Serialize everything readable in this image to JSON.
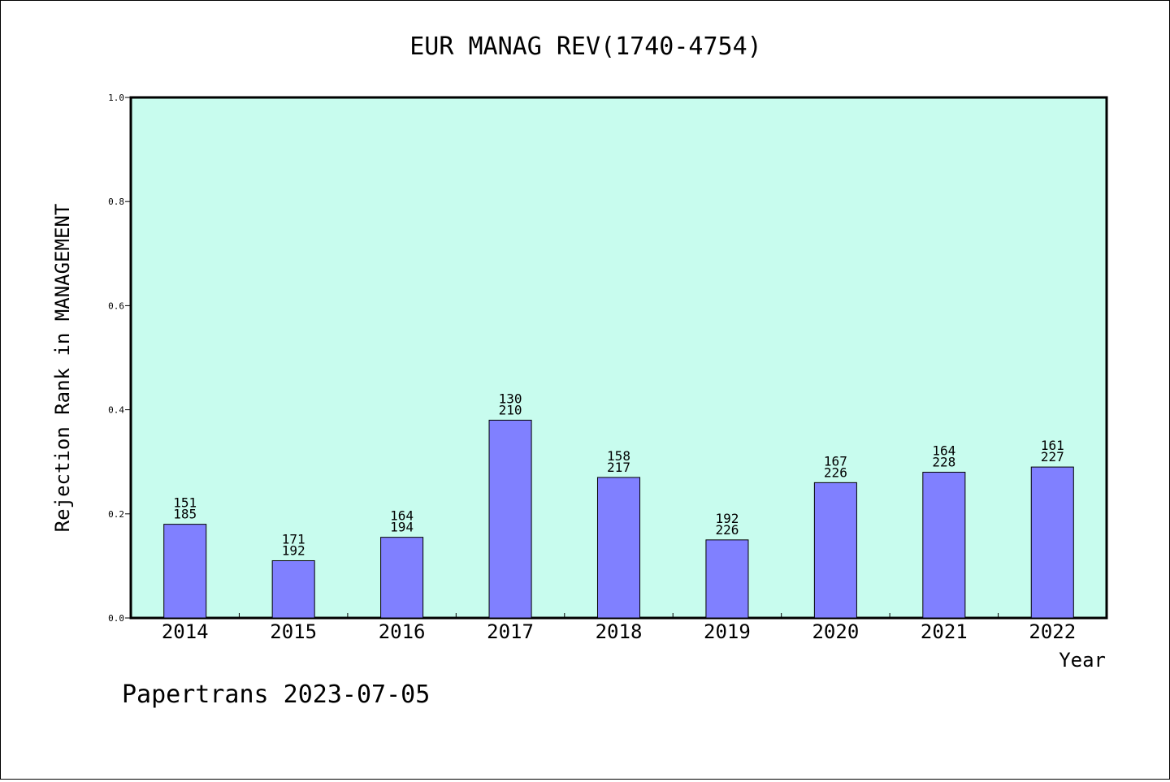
{
  "chart_data": {
    "type": "bar",
    "title": "EUR MANAG REV(1740-4754)",
    "xlabel": "Year",
    "ylabel": "Rejection Rank in MANAGEMENT",
    "ylim": [
      0,
      1.0
    ],
    "yticks": [
      "0.0",
      "0.2",
      "0.4",
      "0.6",
      "0.8",
      "1.0"
    ],
    "categories": [
      "2014",
      "2015",
      "2016",
      "2017",
      "2018",
      "2019",
      "2020",
      "2021",
      "2022"
    ],
    "values": [
      0.18,
      0.11,
      0.155,
      0.38,
      0.27,
      0.15,
      0.26,
      0.28,
      0.29
    ],
    "labels_top": [
      "151",
      "171",
      "164",
      "130",
      "158",
      "192",
      "167",
      "164",
      "161"
    ],
    "labels_bottom": [
      "185",
      "192",
      "194",
      "210",
      "217",
      "226",
      "226",
      "228",
      "227"
    ],
    "grid": false,
    "legend": "none",
    "colors": {
      "plot_background": "#c8fcee",
      "bar_fill": "#8080ff",
      "bar_stroke": "#000000"
    }
  },
  "footer": {
    "text": "Papertrans 2023-07-05"
  }
}
